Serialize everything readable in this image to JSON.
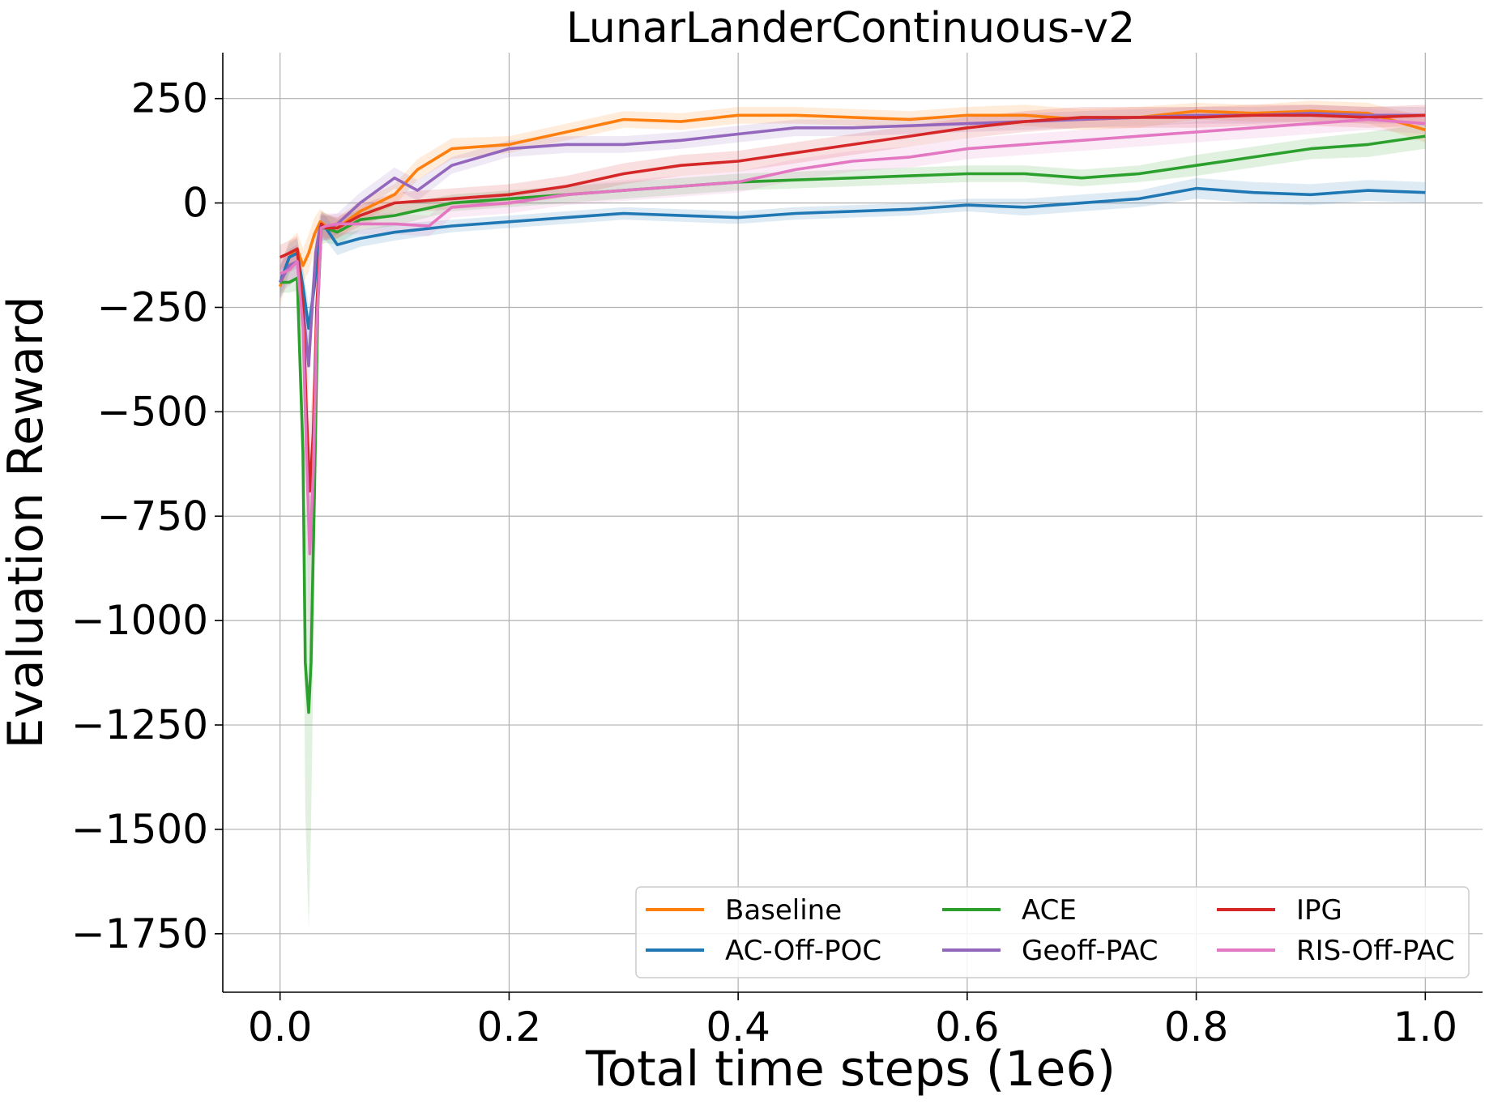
{
  "chart_data": {
    "type": "line",
    "title": "LunarLanderContinuous-v2",
    "xlabel": "Total time steps (1e6)",
    "ylabel": "Evaluation Reward",
    "xlim": [
      -0.05,
      1.05
    ],
    "ylim": [
      -1890,
      360
    ],
    "xticks": [
      0.0,
      0.2,
      0.4,
      0.6,
      0.8,
      1.0
    ],
    "xtick_labels": [
      "0.0",
      "0.2",
      "0.4",
      "0.6",
      "0.8",
      "1.0"
    ],
    "yticks": [
      250,
      0,
      -250,
      -500,
      -750,
      -1000,
      -1250,
      -1500,
      -1750
    ],
    "ytick_labels": [
      "250",
      "0",
      "−250",
      "−500",
      "−750",
      "−1000",
      "−1250",
      "−1500",
      "−1750"
    ],
    "grid": true,
    "legend_position": "lower-right",
    "series": [
      {
        "name": "Baseline",
        "color": "#ff7f0e",
        "x": [
          0,
          0.008,
          0.015,
          0.02,
          0.025,
          0.03,
          0.035,
          0.04,
          0.05,
          0.07,
          0.1,
          0.12,
          0.15,
          0.2,
          0.25,
          0.3,
          0.35,
          0.4,
          0.45,
          0.5,
          0.55,
          0.6,
          0.65,
          0.7,
          0.75,
          0.8,
          0.85,
          0.9,
          0.95,
          1.0
        ],
        "y": [
          -200,
          -130,
          -110,
          -150,
          -120,
          -75,
          -45,
          -55,
          -60,
          -20,
          20,
          80,
          130,
          140,
          170,
          200,
          195,
          210,
          210,
          205,
          200,
          210,
          210,
          200,
          205,
          220,
          215,
          220,
          215,
          175
        ],
        "band": [
          45,
          40,
          40,
          40,
          45,
          40,
          30,
          30,
          25,
          25,
          25,
          25,
          25,
          20,
          20,
          20,
          20,
          20,
          20,
          20,
          20,
          20,
          25,
          25,
          25,
          20,
          20,
          25,
          25,
          30
        ]
      },
      {
        "name": "AC-Off-POC",
        "color": "#1f77b4",
        "x": [
          0,
          0.008,
          0.015,
          0.02,
          0.025,
          0.03,
          0.035,
          0.04,
          0.05,
          0.07,
          0.1,
          0.15,
          0.2,
          0.25,
          0.3,
          0.35,
          0.4,
          0.45,
          0.5,
          0.55,
          0.6,
          0.65,
          0.7,
          0.75,
          0.8,
          0.85,
          0.9,
          0.95,
          1.0
        ],
        "y": [
          -190,
          -130,
          -120,
          -200,
          -300,
          -200,
          -60,
          -60,
          -100,
          -85,
          -70,
          -55,
          -45,
          -35,
          -25,
          -30,
          -35,
          -25,
          -20,
          -15,
          -5,
          -10,
          0,
          10,
          35,
          25,
          20,
          30,
          25
        ],
        "band": [
          40,
          35,
          35,
          45,
          55,
          45,
          30,
          30,
          25,
          20,
          20,
          15,
          15,
          15,
          15,
          15,
          15,
          15,
          15,
          15,
          15,
          20,
          20,
          20,
          25,
          25,
          25,
          25,
          25
        ]
      },
      {
        "name": "ACE",
        "color": "#2ca02c",
        "x": [
          0,
          0.008,
          0.015,
          0.02,
          0.022,
          0.025,
          0.027,
          0.03,
          0.033,
          0.036,
          0.04,
          0.05,
          0.07,
          0.1,
          0.15,
          0.2,
          0.25,
          0.3,
          0.35,
          0.4,
          0.45,
          0.5,
          0.55,
          0.6,
          0.65,
          0.7,
          0.75,
          0.8,
          0.85,
          0.9,
          0.95,
          1.0
        ],
        "y": [
          -190,
          -190,
          -180,
          -600,
          -1100,
          -1220,
          -1100,
          -700,
          -250,
          -60,
          -60,
          -70,
          -40,
          -30,
          0,
          10,
          20,
          30,
          40,
          50,
          55,
          60,
          65,
          70,
          70,
          60,
          70,
          90,
          110,
          130,
          140,
          160
        ],
        "band": [
          25,
          25,
          30,
          150,
          350,
          520,
          400,
          220,
          90,
          40,
          35,
          30,
          25,
          25,
          20,
          20,
          20,
          20,
          20,
          20,
          20,
          20,
          20,
          20,
          20,
          20,
          20,
          25,
          25,
          25,
          30,
          30
        ]
      },
      {
        "name": "Geoff-PAC",
        "color": "#9467bd",
        "x": [
          0,
          0.008,
          0.015,
          0.02,
          0.025,
          0.028,
          0.031,
          0.035,
          0.04,
          0.05,
          0.07,
          0.1,
          0.12,
          0.15,
          0.2,
          0.25,
          0.3,
          0.35,
          0.4,
          0.45,
          0.5,
          0.55,
          0.6,
          0.65,
          0.7,
          0.75,
          0.8,
          0.85,
          0.9,
          0.95,
          1.0
        ],
        "y": [
          -190,
          -150,
          -140,
          -250,
          -390,
          -250,
          -120,
          -55,
          -60,
          -50,
          0,
          60,
          30,
          90,
          130,
          140,
          140,
          150,
          165,
          180,
          180,
          185,
          190,
          195,
          200,
          205,
          210,
          210,
          215,
          210,
          210
        ],
        "band": [
          40,
          40,
          40,
          60,
          70,
          55,
          40,
          30,
          30,
          25,
          25,
          25,
          25,
          20,
          20,
          20,
          20,
          20,
          20,
          20,
          20,
          20,
          20,
          20,
          20,
          20,
          20,
          20,
          20,
          20,
          20
        ]
      },
      {
        "name": "IPG",
        "color": "#d62728",
        "x": [
          0,
          0.008,
          0.015,
          0.02,
          0.023,
          0.026,
          0.029,
          0.032,
          0.036,
          0.04,
          0.05,
          0.07,
          0.1,
          0.15,
          0.2,
          0.25,
          0.3,
          0.35,
          0.4,
          0.45,
          0.5,
          0.55,
          0.6,
          0.65,
          0.7,
          0.75,
          0.8,
          0.85,
          0.9,
          0.95,
          1.0
        ],
        "y": [
          -130,
          -120,
          -110,
          -250,
          -500,
          -690,
          -550,
          -250,
          -50,
          -60,
          -60,
          -30,
          0,
          10,
          20,
          40,
          70,
          90,
          100,
          120,
          140,
          160,
          180,
          195,
          205,
          205,
          205,
          210,
          210,
          205,
          210
        ],
        "band": [
          30,
          30,
          30,
          70,
          130,
          160,
          130,
          70,
          30,
          30,
          25,
          25,
          25,
          25,
          25,
          25,
          25,
          25,
          25,
          25,
          25,
          25,
          25,
          25,
          25,
          25,
          25,
          25,
          25,
          25,
          25
        ]
      },
      {
        "name": "RIS-Off-PAC",
        "color": "#e377c2",
        "x": [
          0,
          0.008,
          0.015,
          0.02,
          0.023,
          0.026,
          0.029,
          0.032,
          0.036,
          0.04,
          0.05,
          0.07,
          0.1,
          0.13,
          0.15,
          0.2,
          0.25,
          0.3,
          0.35,
          0.4,
          0.45,
          0.5,
          0.55,
          0.6,
          0.65,
          0.7,
          0.75,
          0.8,
          0.85,
          0.9,
          0.95,
          1.0
        ],
        "y": [
          -170,
          -160,
          -140,
          -300,
          -600,
          -840,
          -650,
          -300,
          -60,
          -55,
          -50,
          -50,
          -50,
          -55,
          -10,
          0,
          20,
          30,
          40,
          50,
          80,
          100,
          110,
          130,
          140,
          150,
          160,
          170,
          180,
          190,
          200,
          190
        ],
        "band": [
          40,
          40,
          40,
          90,
          180,
          250,
          180,
          90,
          35,
          30,
          25,
          25,
          25,
          25,
          25,
          25,
          25,
          25,
          25,
          25,
          25,
          25,
          25,
          25,
          25,
          25,
          25,
          25,
          25,
          25,
          25,
          25
        ]
      }
    ]
  }
}
